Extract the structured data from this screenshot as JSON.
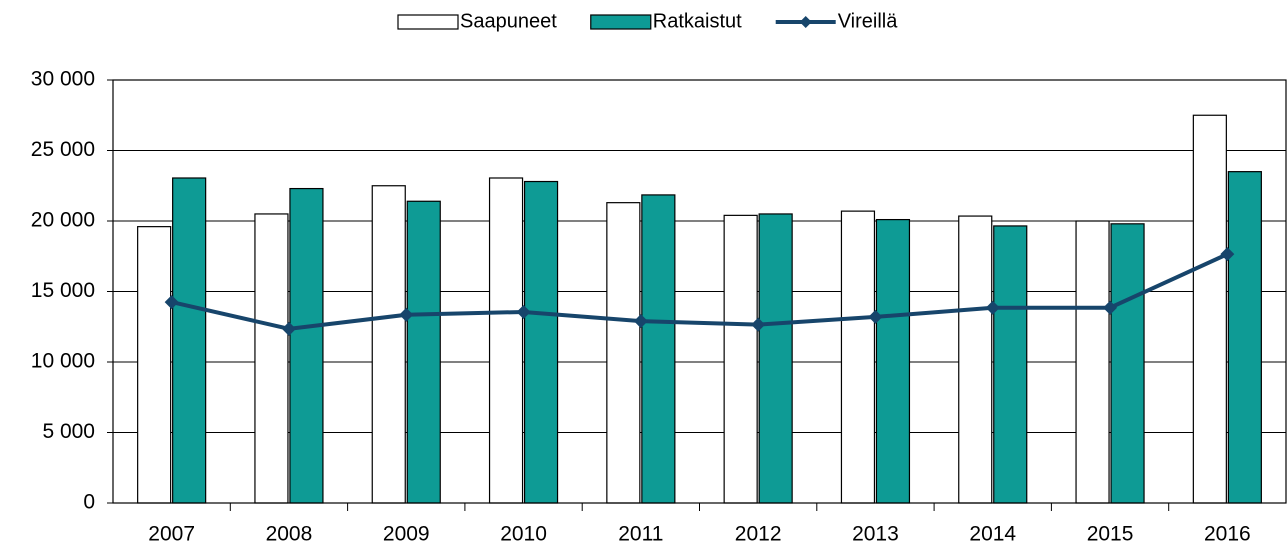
{
  "chart_data": {
    "type": "bar-line",
    "categories": [
      "2007",
      "2008",
      "2009",
      "2010",
      "2011",
      "2012",
      "2013",
      "2014",
      "2015",
      "2016"
    ],
    "series": [
      {
        "name": "Saapuneet",
        "type": "bar",
        "color": "#ffffff",
        "values": [
          19600,
          20500,
          22500,
          23050,
          21300,
          20400,
          20700,
          20350,
          20000,
          27500
        ]
      },
      {
        "name": "Ratkaistut",
        "type": "bar",
        "color": "#0e9b95",
        "values": [
          23050,
          22300,
          21400,
          22800,
          21850,
          20500,
          20100,
          19650,
          19800,
          23500
        ]
      },
      {
        "name": "Vireillä",
        "type": "line",
        "color": "#17456b",
        "values": [
          14250,
          12350,
          13350,
          13550,
          12900,
          12650,
          13200,
          13850,
          13850,
          17650
        ]
      }
    ],
    "ylim": [
      0,
      30000
    ],
    "yticks": [
      {
        "value": 0,
        "label": "0"
      },
      {
        "value": 5000,
        "label": "5 000"
      },
      {
        "value": 10000,
        "label": "10 000"
      },
      {
        "value": 15000,
        "label": "15 000"
      },
      {
        "value": 20000,
        "label": "20 000"
      },
      {
        "value": 25000,
        "label": "25 000"
      },
      {
        "value": 30000,
        "label": "30 000"
      }
    ],
    "grid": true,
    "legend": "top"
  }
}
